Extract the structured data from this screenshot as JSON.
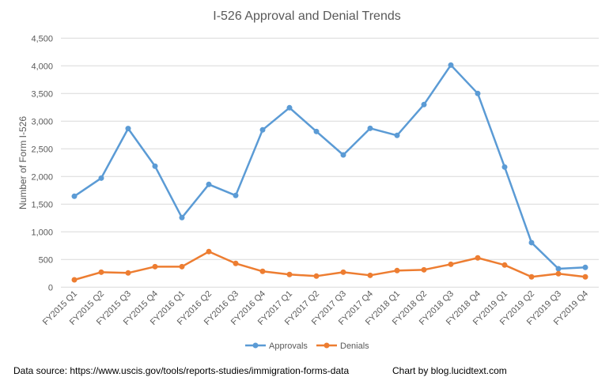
{
  "chart_data": {
    "type": "line",
    "title": "I-526 Approval and Denial Trends",
    "xlabel": "",
    "ylabel": "Number of Form I-526",
    "ylim": [
      0,
      4500
    ],
    "yticks": [
      "0",
      "500",
      "1,000",
      "1,500",
      "2,000",
      "2,500",
      "3,000",
      "3,500",
      "4,000",
      "4,500"
    ],
    "ytick_values": [
      0,
      500,
      1000,
      1500,
      2000,
      2500,
      3000,
      3500,
      4000,
      4500
    ],
    "grid": true,
    "legend_position": "bottom",
    "categories": [
      "FY2015 Q1",
      "FY2015 Q2",
      "FY2015 Q3",
      "FY2015 Q4",
      "FY2016 Q1",
      "FY2016 Q2",
      "FY2016 Q3",
      "FY2016 Q4",
      "FY2017 Q1",
      "FY2017 Q2",
      "FY2017 Q3",
      "FY2017 Q4",
      "FY2018 Q1",
      "FY2018 Q2",
      "FY2018 Q3",
      "FY2018 Q4",
      "FY2019 Q1",
      "FY2019 Q2",
      "FY2019 Q3",
      "FY2019 Q4"
    ],
    "series": [
      {
        "name": "Approvals",
        "color": "#5b9bd5",
        "values": [
          1643,
          1971,
          2867,
          2186,
          1257,
          1857,
          1657,
          2843,
          3243,
          2814,
          2390,
          2871,
          2743,
          3300,
          4014,
          3500,
          2171,
          805,
          333,
          357
        ]
      },
      {
        "name": "Denials",
        "color": "#ed7d31",
        "values": [
          133,
          271,
          257,
          371,
          371,
          643,
          429,
          286,
          229,
          200,
          271,
          214,
          300,
          314,
          414,
          529,
          400,
          186,
          243,
          186
        ]
      }
    ]
  },
  "footer": {
    "source": "Data source: https://www.uscis.gov/tools/reports-studies/immigration-forms-data",
    "credit": "Chart by blog.lucidtext.com"
  }
}
